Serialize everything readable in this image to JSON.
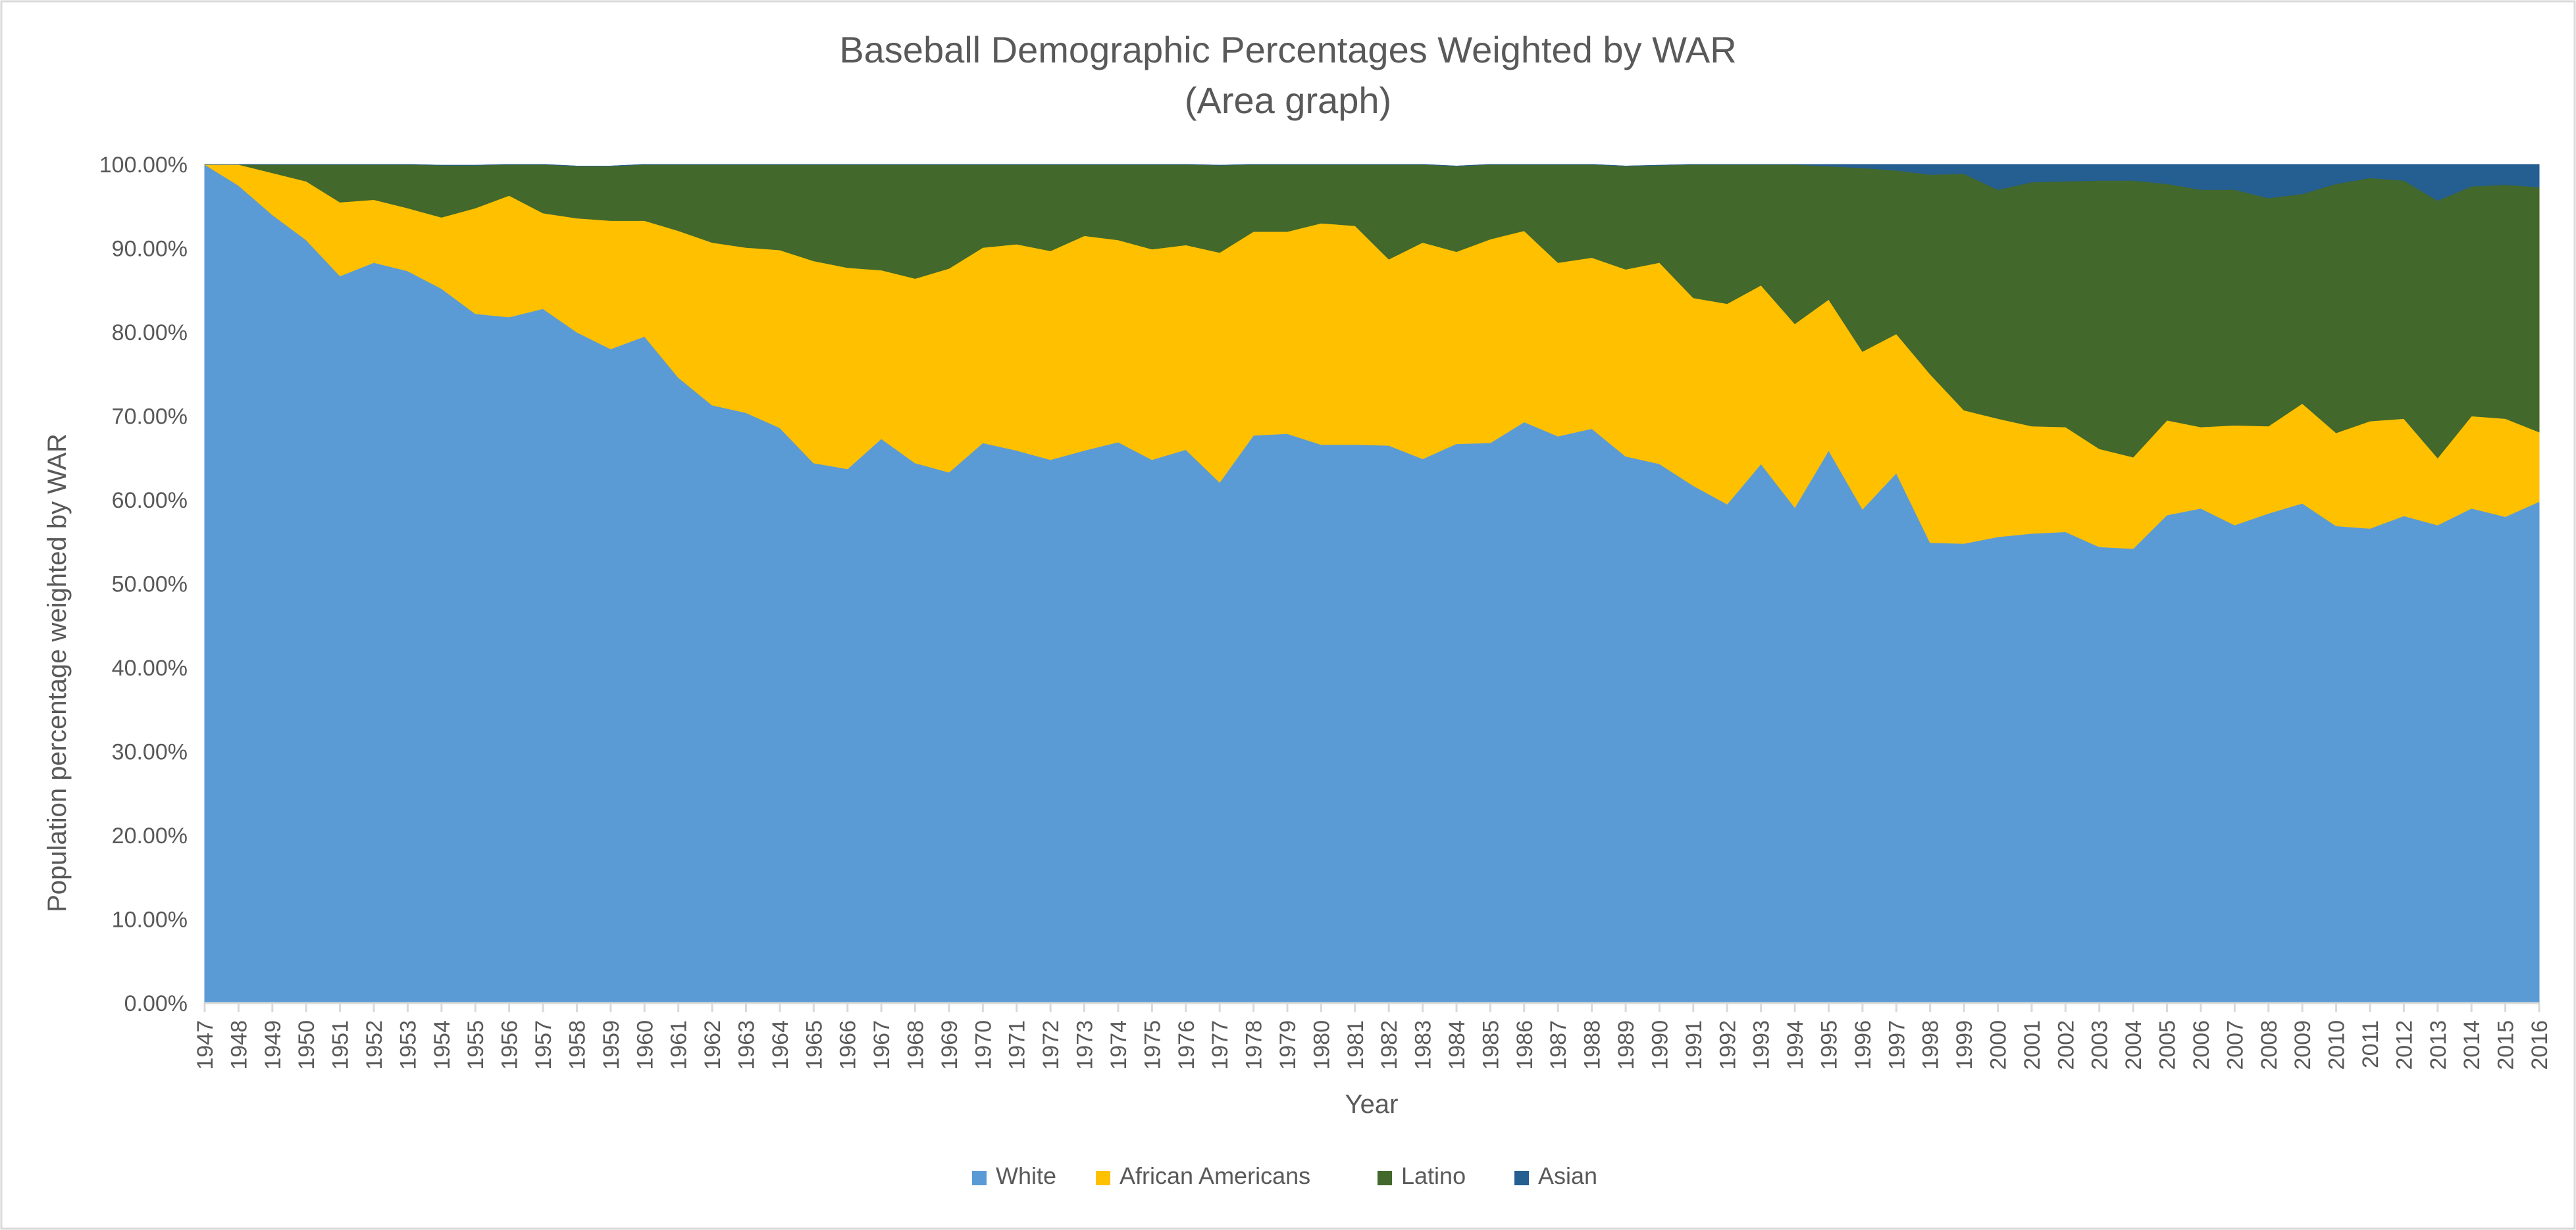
{
  "chart_data": {
    "type": "area",
    "stacked": true,
    "title": "Baseball Demographic Percentages Weighted by WAR",
    "subtitle": "(Area graph)",
    "xlabel": "Year",
    "ylabel": "Population percentage weighted by WAR",
    "ylim": [
      0,
      100
    ],
    "y_ticks": [
      "0.00%",
      "10.00%",
      "20.00%",
      "30.00%",
      "40.00%",
      "50.00%",
      "60.00%",
      "70.00%",
      "80.00%",
      "90.00%",
      "100.00%"
    ],
    "legend_position": "bottom",
    "grid": false,
    "categories": [
      "1947",
      "1948",
      "1949",
      "1950",
      "1951",
      "1952",
      "1953",
      "1954",
      "1955",
      "1956",
      "1957",
      "1958",
      "1959",
      "1960",
      "1961",
      "1962",
      "1963",
      "1964",
      "1965",
      "1966",
      "1967",
      "1968",
      "1969",
      "1970",
      "1971",
      "1972",
      "1973",
      "1974",
      "1975",
      "1976",
      "1977",
      "1978",
      "1979",
      "1980",
      "1981",
      "1982",
      "1983",
      "1984",
      "1985",
      "1986",
      "1987",
      "1988",
      "1989",
      "1990",
      "1991",
      "1992",
      "1993",
      "1994",
      "1995",
      "1996",
      "1997",
      "1998",
      "1999",
      "2000",
      "2001",
      "2002",
      "2003",
      "2004",
      "2005",
      "2006",
      "2007",
      "2008",
      "2009",
      "2010",
      "2011",
      "2012",
      "2013",
      "2014",
      "2015",
      "2016"
    ],
    "series": [
      {
        "name": "White",
        "color": "#5B9BD5",
        "values": [
          100.0,
          97.5,
          94.0,
          91.0,
          86.7,
          88.3,
          87.3,
          85.2,
          82.2,
          81.8,
          82.8,
          80.0,
          78.0,
          79.5,
          74.6,
          71.3,
          70.4,
          68.6,
          64.4,
          63.7,
          67.3,
          64.4,
          63.3,
          66.8,
          65.9,
          64.8,
          65.9,
          66.9,
          64.8,
          66.0,
          62.1,
          67.7,
          67.9,
          66.6,
          66.6,
          66.5,
          64.9,
          66.7,
          66.8,
          69.3,
          67.6,
          68.5,
          65.2,
          64.3,
          61.7,
          59.5,
          64.3,
          59.1,
          65.9,
          58.9,
          63.2,
          54.9,
          54.8,
          55.6,
          56.0,
          56.2,
          54.4,
          54.2,
          58.2,
          59.0,
          57.0,
          58.4,
          59.6,
          56.9,
          56.6,
          58.1,
          57.0,
          59.0,
          58.0,
          59.8
        ]
      },
      {
        "name": "African Americans",
        "color": "#FFC000",
        "values": [
          0.0,
          2.5,
          5.0,
          7.0,
          8.8,
          7.5,
          7.5,
          8.5,
          12.6,
          14.5,
          11.4,
          13.6,
          15.3,
          13.8,
          17.5,
          19.4,
          19.7,
          21.2,
          24.1,
          24.0,
          20.1,
          22.0,
          24.3,
          23.3,
          24.6,
          24.9,
          25.6,
          24.1,
          25.1,
          24.4,
          27.4,
          24.3,
          24.1,
          26.4,
          26.1,
          22.2,
          25.8,
          22.9,
          24.3,
          22.8,
          20.7,
          20.4,
          22.3,
          24.0,
          22.4,
          23.9,
          21.3,
          21.9,
          18.0,
          18.8,
          16.6,
          20.1,
          15.9,
          14.1,
          12.8,
          12.5,
          11.7,
          10.9,
          11.3,
          9.7,
          11.9,
          10.4,
          11.9,
          11.1,
          12.8,
          11.6,
          8.0,
          11.0,
          11.7,
          8.3
        ]
      },
      {
        "name": "Latino",
        "color": "#43682B",
        "values": [
          0.0,
          0.0,
          1.0,
          2.0,
          4.5,
          4.2,
          5.2,
          6.2,
          5.1,
          3.7,
          5.8,
          6.2,
          6.5,
          6.7,
          7.9,
          9.3,
          9.9,
          10.2,
          11.5,
          12.3,
          12.6,
          13.6,
          12.4,
          9.9,
          9.5,
          10.3,
          8.5,
          9.0,
          10.1,
          9.6,
          10.4,
          8.0,
          8.0,
          7.0,
          7.3,
          11.3,
          9.3,
          10.2,
          8.9,
          7.9,
          11.7,
          11.1,
          12.3,
          11.6,
          15.9,
          16.6,
          14.4,
          19.0,
          15.9,
          21.9,
          19.5,
          23.8,
          28.2,
          27.3,
          29.1,
          29.3,
          32.0,
          33.0,
          28.2,
          28.3,
          28.1,
          27.2,
          25.0,
          29.7,
          29.0,
          28.4,
          30.7,
          27.4,
          27.9,
          29.2
        ]
      },
      {
        "name": "Asian",
        "color": "#255E91",
        "values": [
          0.0,
          0.0,
          0.0,
          0.0,
          0.0,
          0.0,
          0.0,
          0.0,
          0.0,
          0.0,
          0.0,
          0.0,
          0.0,
          0.0,
          0.0,
          0.0,
          0.0,
          0.0,
          0.0,
          0.0,
          0.0,
          0.0,
          0.0,
          0.0,
          0.0,
          0.0,
          0.0,
          0.0,
          0.0,
          0.0,
          0.0,
          0.0,
          0.0,
          0.0,
          0.0,
          0.0,
          0.0,
          0.0,
          0.0,
          0.0,
          0.0,
          0.0,
          0.0,
          0.0,
          0.0,
          0.0,
          0.0,
          0.0,
          0.2,
          0.4,
          0.7,
          1.2,
          1.1,
          3.0,
          2.1,
          2.0,
          1.9,
          1.9,
          2.3,
          3.0,
          3.0,
          4.0,
          3.5,
          2.3,
          1.6,
          1.9,
          4.3,
          2.6,
          2.4,
          2.7
        ]
      }
    ]
  }
}
